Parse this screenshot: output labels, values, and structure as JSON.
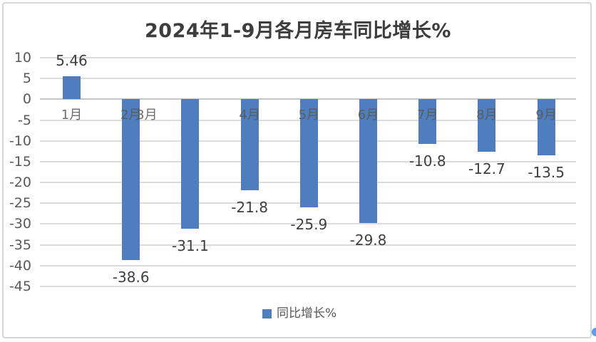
{
  "page": {
    "background": "#ffffff",
    "frame_border_color": "#d6d6d6"
  },
  "chart_data": {
    "type": "bar",
    "title": "2024年1-9月各月房车同比增长%",
    "series_name": "同比增长%",
    "categories": [
      "1月",
      "2月",
      "3月",
      "4月",
      "5月",
      "6月",
      "7月",
      "8月",
      "9月"
    ],
    "values": [
      5.46,
      -38.6,
      -31.1,
      -21.8,
      -25.9,
      -29.8,
      -10.8,
      -12.7,
      -13.5
    ],
    "data_labels": [
      "5.46",
      "-38.6",
      "-31.1",
      "-21.8",
      "-25.9",
      "-29.8",
      "-10.8",
      "-12.7",
      "-13.5"
    ],
    "xlabel": "",
    "ylabel": "",
    "ylim": [
      -45,
      10
    ],
    "yticks": [
      10,
      5,
      0,
      -5,
      -10,
      -15,
      -20,
      -25,
      -30,
      -35,
      -40,
      -45
    ],
    "grid": true,
    "legend_position": "bottom",
    "bar_color": "#4f7dbd",
    "axis_label_color": "#595959",
    "data_label_color": "#3f3f3f",
    "gridline_color": "#dcdcdc",
    "zero_line_color": "#c6c6c6",
    "category_label_dx": [
      0,
      0,
      -61,
      0,
      0,
      0,
      0,
      0,
      0
    ]
  },
  "misc": {
    "resize_handle_color": "#57a0ef"
  }
}
